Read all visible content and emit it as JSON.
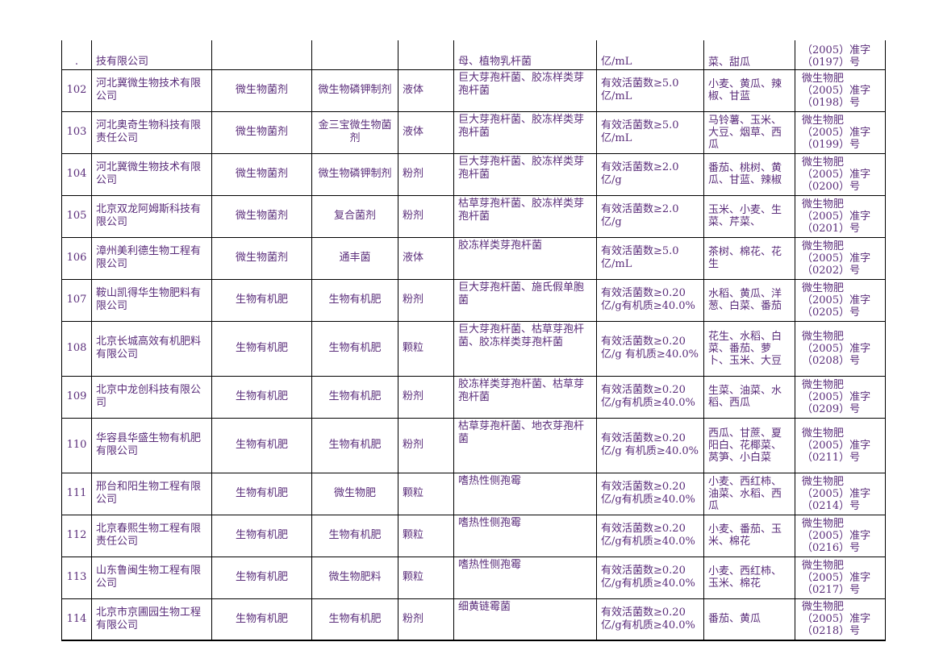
{
  "rows": [
    {
      "no": ".",
      "org": "技有限公司",
      "type": "",
      "name": "",
      "form": "",
      "strain": "母、植物乳杆菌",
      "content": "亿/mL",
      "crops": "菜、甜瓜",
      "reg_line1": "（2005）准字",
      "reg_line2": "（0197）号"
    },
    {
      "no": "102",
      "org": "河北冀微生物技术有限公司",
      "type": "微生物菌剂",
      "name": "微生物磷钾制剂",
      "form": "液体",
      "strain": "巨大芽孢杆菌、胶冻样类芽孢杆菌",
      "content": "有效活菌数≥5.0亿/mL",
      "crops": "小麦、黄瓜、辣椒、甘蓝",
      "reg_line0": "微生物肥",
      "reg_line1": "（2005）准字",
      "reg_line2": "（0198）号"
    },
    {
      "no": "103",
      "org": "河北奥奇生物科技有限责任公司",
      "type": "微生物菌剂",
      "name": "金三宝微生物菌剂",
      "form": "液体",
      "strain": "巨大芽孢杆菌、胶冻样类芽孢杆菌",
      "content": "有效活菌数≥5.0亿/mL",
      "crops": "马铃薯、玉米、大豆、烟草、西瓜",
      "reg_line0": "微生物肥",
      "reg_line1": "（2005）准字",
      "reg_line2": "（0199）号"
    },
    {
      "no": "104",
      "org": "河北冀微生物技术有限公司",
      "type": "微生物菌剂",
      "name": "微生物磷钾制剂",
      "form": "粉剂",
      "strain": "巨大芽孢杆菌、胶冻样类芽孢杆菌",
      "content": "有效活菌数≥2.0亿/g",
      "crops": "番茄、桃树、黄瓜、甘蓝、辣椒",
      "reg_line0": "微生物肥",
      "reg_line1": "（2005）准字",
      "reg_line2": "（0200）号"
    },
    {
      "no": "105",
      "org": "北京双龙阿姆斯科技有限公司",
      "type": "微生物菌剂",
      "name": "复合菌剂",
      "form": "粉剂",
      "strain": "枯草芽孢杆菌、胶冻样类芽孢杆菌",
      "content": "有效活菌数≥2.0亿/g",
      "crops": "玉米、小麦、生菜、芹菜、",
      "reg_line0": "微生物肥",
      "reg_line1": "（2005）准字",
      "reg_line2": "（0201）号"
    },
    {
      "no": "106",
      "org": "漳州美利德生物工程有限公司",
      "type": "微生物菌剂",
      "name": "通丰菌",
      "form": "液体",
      "strain": "胶冻样类芽孢杆菌",
      "content": "有效活菌数≥5.0亿/mL",
      "crops": "茶树、棉花、花生",
      "reg_line0": "微生物肥",
      "reg_line1": "（2005）准字",
      "reg_line2": "（0202）号"
    },
    {
      "no": "107",
      "org": "鞍山凯得华生物肥料有限公司",
      "type": "生物有机肥",
      "name": "生物有机肥",
      "form": "粉剂",
      "strain": "巨大芽孢杆菌、施氏假单胞菌",
      "content": "有效活菌数≥0.20亿/g有机质≥40.0%",
      "crops": "水稻、黄瓜、洋葱、白菜、番茄",
      "reg_line0": "微生物肥",
      "reg_line1": "（2005）准字",
      "reg_line2": "（0205）号"
    },
    {
      "no": "108",
      "org": "北京长城高效有机肥料有限公司",
      "type": "生物有机肥",
      "name": "生物有机肥",
      "form": "颗粒",
      "strain": "巨大芽孢杆菌、枯草芽孢杆菌、胶冻样类芽孢杆菌",
      "content": "有效活菌数≥0.20亿/g 有机质≥40.0%",
      "crops": "花生、水稻、白菜、番茄、萝卜、玉米、大豆",
      "reg_line0": "微生物肥",
      "reg_line1": "（2005）准字",
      "reg_line2": "（0208）号"
    },
    {
      "no": "109",
      "org": "北京中龙创科技有限公司",
      "type": "生物有机肥",
      "name": "生物有机肥",
      "form": "粉剂",
      "strain": "胶冻样类芽孢杆菌、枯草芽孢杆菌",
      "content": "有效活菌数≥0.20亿/g有机质≥40.0%",
      "crops": "生菜、油菜、水稻、西瓜",
      "reg_line0": "微生物肥",
      "reg_line1": "（2005）准字",
      "reg_line2": "（0209）号"
    },
    {
      "no": "110",
      "org": "华容县华盛生物有机肥有限公司",
      "type": "生物有机肥",
      "name": "生物有机肥",
      "form": "粉剂",
      "strain": "枯草芽孢杆菌、地衣芽孢杆菌",
      "content": "有效活菌数≥0.20亿/g 有机质≥40.0%",
      "crops": "西瓜、甘蔗、夏阳白、花椰菜、莴笋、小白菜",
      "reg_line0": "微生物肥",
      "reg_line1": "（2005）准字",
      "reg_line2": "（0211）号"
    },
    {
      "no": "111",
      "org": "邢台和阳生物工程有限公司",
      "type": "生物有机肥",
      "name": "微生物肥",
      "form": "颗粒",
      "strain": "嗜热性侧孢霉",
      "content": "有效活菌数≥0.20亿/g有机质≥40.0%",
      "crops": "小麦、西红柿、油菜、水稻、西瓜",
      "reg_line0": "微生物肥",
      "reg_line1": "（2005）准字",
      "reg_line2": "（0214）号"
    },
    {
      "no": "112",
      "org": "北京春熙生物工程有限责任公司",
      "type": "生物有机肥",
      "name": "生物有机肥",
      "form": "颗粒",
      "strain": "嗜热性侧孢霉",
      "content": "有效活菌数≥0.20亿/g有机质≥40.0%",
      "crops": "小麦、番茄、玉米、棉花",
      "reg_line0": "微生物肥",
      "reg_line1": "（2005）准字",
      "reg_line2": "（0216）号"
    },
    {
      "no": "113",
      "org": "山东鲁闽生物工程有限公司",
      "type": "生物有机肥",
      "name": "微生物肥料",
      "form": "颗粒",
      "strain": "嗜热性侧孢霉",
      "content": "有效活菌数≥0.20亿/g有机质≥40.0%",
      "crops": "小麦、西红柿、玉米、棉花",
      "reg_line0": "微生物肥",
      "reg_line1": "（2005）准字",
      "reg_line2": "（0217）号"
    },
    {
      "no": "114",
      "org": "北京市京圃园生物工程有限公司",
      "type": "生物有机肥",
      "name": "生物有机肥",
      "form": "粉剂",
      "strain": "细黄链霉菌",
      "content": "有效活菌数≥0.20亿/g有机质≥40.0%",
      "crops": "番茄、黄瓜",
      "reg_line0": "微生物肥",
      "reg_line1": "（2005）准字",
      "reg_line2": "（0218）号"
    }
  ]
}
